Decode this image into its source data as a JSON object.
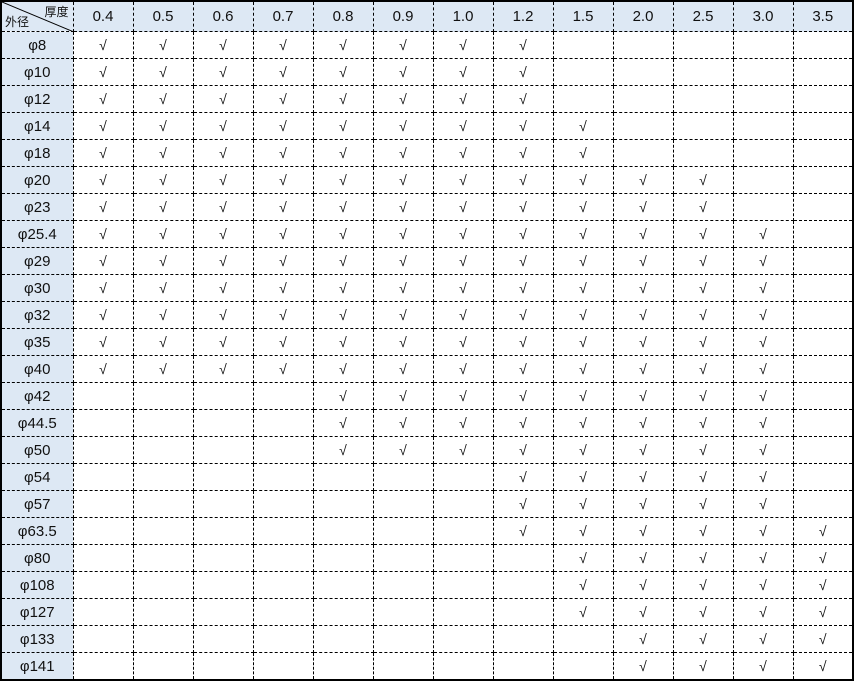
{
  "table": {
    "corner_top": "厚度",
    "corner_bottom": "外径",
    "columns": [
      "0.4",
      "0.5",
      "0.6",
      "0.7",
      "0.8",
      "0.9",
      "1.0",
      "1.2",
      "1.5",
      "2.0",
      "2.5",
      "3.0",
      "3.5"
    ],
    "mark": "√",
    "rows": [
      {
        "label": "φ8",
        "cells": [
          "√",
          "√",
          "√",
          "√",
          "√",
          "√",
          "√",
          "√",
          "",
          "",
          "",
          "",
          ""
        ]
      },
      {
        "label": "φ10",
        "cells": [
          "√",
          "√",
          "√",
          "√",
          "√",
          "√",
          "√",
          "√",
          "",
          "",
          "",
          "",
          ""
        ]
      },
      {
        "label": "φ12",
        "cells": [
          "√",
          "√",
          "√",
          "√",
          "√",
          "√",
          "√",
          "√",
          "",
          "",
          "",
          "",
          ""
        ]
      },
      {
        "label": "φ14",
        "cells": [
          "√",
          "√",
          "√",
          "√",
          "√",
          "√",
          "√",
          "√",
          "√",
          "",
          "",
          "",
          ""
        ]
      },
      {
        "label": "φ18",
        "cells": [
          "√",
          "√",
          "√",
          "√",
          "√",
          "√",
          "√",
          "√",
          "√",
          "",
          "",
          "",
          ""
        ]
      },
      {
        "label": "φ20",
        "cells": [
          "√",
          "√",
          "√",
          "√",
          "√",
          "√",
          "√",
          "√",
          "√",
          "√",
          "√",
          "",
          ""
        ]
      },
      {
        "label": "φ23",
        "cells": [
          "√",
          "√",
          "√",
          "√",
          "√",
          "√",
          "√",
          "√",
          "√",
          "√",
          "√",
          "",
          ""
        ]
      },
      {
        "label": "φ25.4",
        "cells": [
          "√",
          "√",
          "√",
          "√",
          "√",
          "√",
          "√",
          "√",
          "√",
          "√",
          "√",
          "√",
          ""
        ]
      },
      {
        "label": "φ29",
        "cells": [
          "√",
          "√",
          "√",
          "√",
          "√",
          "√",
          "√",
          "√",
          "√",
          "√",
          "√",
          "√",
          ""
        ]
      },
      {
        "label": "φ30",
        "cells": [
          "√",
          "√",
          "√",
          "√",
          "√",
          "√",
          "√",
          "√",
          "√",
          "√",
          "√",
          "√",
          ""
        ]
      },
      {
        "label": "φ32",
        "cells": [
          "√",
          "√",
          "√",
          "√",
          "√",
          "√",
          "√",
          "√",
          "√",
          "√",
          "√",
          "√",
          ""
        ]
      },
      {
        "label": "φ35",
        "cells": [
          "√",
          "√",
          "√",
          "√",
          "√",
          "√",
          "√",
          "√",
          "√",
          "√",
          "√",
          "√",
          ""
        ]
      },
      {
        "label": "φ40",
        "cells": [
          "√",
          "√",
          "√",
          "√",
          "√",
          "√",
          "√",
          "√",
          "√",
          "√",
          "√",
          "√",
          ""
        ]
      },
      {
        "label": "φ42",
        "cells": [
          "",
          "",
          "",
          "",
          "√",
          "√",
          "√",
          "√",
          "√",
          "√",
          "√",
          "√",
          ""
        ]
      },
      {
        "label": "φ44.5",
        "cells": [
          "",
          "",
          "",
          "",
          "√",
          "√",
          "√",
          "√",
          "√",
          "√",
          "√",
          "√",
          ""
        ]
      },
      {
        "label": "φ50",
        "cells": [
          "",
          "",
          "",
          "",
          "√",
          "√",
          "√",
          "√",
          "√",
          "√",
          "√",
          "√",
          ""
        ]
      },
      {
        "label": "φ54",
        "cells": [
          "",
          "",
          "",
          "",
          "",
          "",
          "",
          "√",
          "√",
          "√",
          "√",
          "√",
          ""
        ]
      },
      {
        "label": "φ57",
        "cells": [
          "",
          "",
          "",
          "",
          "",
          "",
          "",
          "√",
          "√",
          "√",
          "√",
          "√",
          ""
        ]
      },
      {
        "label": "φ63.5",
        "cells": [
          "",
          "",
          "",
          "",
          "",
          "",
          "",
          "√",
          "√",
          "√",
          "√",
          "√",
          "√"
        ]
      },
      {
        "label": "φ80",
        "cells": [
          "",
          "",
          "",
          "",
          "",
          "",
          "",
          "",
          "√",
          "√",
          "√",
          "√",
          "√"
        ]
      },
      {
        "label": "φ108",
        "cells": [
          "",
          "",
          "",
          "",
          "",
          "",
          "",
          "",
          "√",
          "√",
          "√",
          "√",
          "√"
        ]
      },
      {
        "label": "φ127",
        "cells": [
          "",
          "",
          "",
          "",
          "",
          "",
          "",
          "",
          "√",
          "√",
          "√",
          "√",
          "√"
        ]
      },
      {
        "label": "φ133",
        "cells": [
          "",
          "",
          "",
          "",
          "",
          "",
          "",
          "",
          "",
          "√",
          "√",
          "√",
          "√"
        ]
      },
      {
        "label": "φ141",
        "cells": [
          "",
          "",
          "",
          "",
          "",
          "",
          "",
          "",
          "",
          "√",
          "√",
          "√",
          "√"
        ]
      }
    ]
  }
}
